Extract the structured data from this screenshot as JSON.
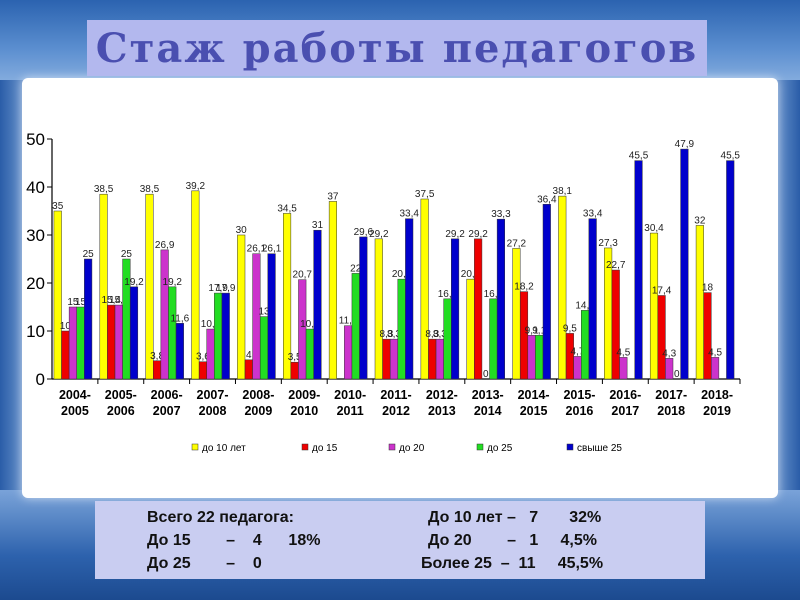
{
  "slide": {
    "title": "Стаж работы педагогов"
  },
  "colors": {
    "series": [
      "#ffff00",
      "#ee0000",
      "#cc33cc",
      "#22dd22",
      "#0000cc"
    ],
    "title_bg": "#b3b8ee",
    "title_text": "#4a4fb0",
    "summary_bg": "#c9cdf1"
  },
  "chart_data": {
    "type": "bar",
    "categories": [
      [
        "2004-",
        "2005"
      ],
      [
        "2005-",
        "2006"
      ],
      [
        "2006-",
        "2007"
      ],
      [
        "2007-",
        "2008"
      ],
      [
        "2008-",
        "2009"
      ],
      [
        "2009-",
        "2010"
      ],
      [
        "2010-",
        "2011"
      ],
      [
        "2011-",
        "2012"
      ],
      [
        "2012-",
        "2013"
      ],
      [
        "2013-",
        "2014"
      ],
      [
        "2014-",
        "2015"
      ],
      [
        "2015-",
        "2016"
      ],
      [
        "2016-",
        "2017"
      ],
      [
        "2017-",
        "2018"
      ],
      [
        "2018-",
        "2019"
      ]
    ],
    "ylim": [
      0,
      50
    ],
    "yticks": [
      0,
      10,
      20,
      30,
      40,
      50
    ],
    "legend_position": "bottom",
    "series": [
      {
        "name": "до 10 лет",
        "values": [
          35,
          38.5,
          38.5,
          39.2,
          30,
          34.5,
          37,
          29.2,
          37.5,
          20.8,
          27.2,
          38.1,
          27.3,
          30.4,
          32
        ],
        "labels": [
          "35",
          "38,5",
          "38,5",
          "39,2",
          "30",
          "34,5",
          "37",
          "29,2",
          "37,5",
          "20,8",
          "27,2",
          "38,1",
          "27,3",
          "30,4",
          "32"
        ]
      },
      {
        "name": "до 15",
        "values": [
          10,
          15.4,
          3.8,
          3.6,
          4,
          3.5,
          0,
          8.3,
          8.3,
          29.2,
          18.2,
          9.5,
          22.7,
          17.4,
          18
        ],
        "labels": [
          "10",
          "15,4",
          "3,8",
          "3,6",
          "4",
          "3,5",
          "",
          "8,3",
          "8,3",
          "29,2",
          "18,2",
          "9,5",
          "22,7",
          "17,4",
          "18"
        ]
      },
      {
        "name": "до 20",
        "values": [
          15,
          15.4,
          26.9,
          10.4,
          26.1,
          20.7,
          11.1,
          8.3,
          8.3,
          0,
          9.1,
          4.7,
          4.5,
          4.3,
          4.5
        ],
        "labels": [
          "15",
          "15,4",
          "26,9",
          "10,4",
          "26,1",
          "20,7",
          "11,1",
          "8,3",
          "8,3",
          "0",
          "9,1",
          "4,7",
          "4,5",
          "4,3",
          "4,5"
        ]
      },
      {
        "name": "до 25",
        "values": [
          15,
          25,
          19.2,
          17.9,
          13,
          10.4,
          22,
          20.8,
          16.7,
          16.7,
          9.1,
          14.3,
          0,
          0,
          0
        ],
        "labels": [
          "15",
          "25",
          "19,2",
          "17,9",
          "13",
          "10,4",
          "22",
          "20,8",
          "16,7",
          "16,7",
          "9,1",
          "14,3",
          "",
          "0",
          ""
        ]
      },
      {
        "name": "свыше 25",
        "values": [
          25,
          19.2,
          11.6,
          17.9,
          26.1,
          31,
          29.6,
          33.4,
          29.2,
          33.3,
          36.4,
          33.4,
          45.5,
          47.9,
          45.5
        ],
        "labels": [
          "25",
          "19,2",
          "11,6",
          "17,9",
          "26,1",
          "31",
          "29,6",
          "33,4",
          "29,2",
          "33,3",
          "36,4",
          "33,4",
          "45,5",
          "47,9",
          "45,5"
        ]
      }
    ]
  },
  "summary": {
    "line1_left": "Всего 22 педагога:",
    "line1_right": "До 10 лет –   7       32%",
    "line2_left": "До 15        –    4      18%",
    "line2_right": "До 20        –   1     4,5%",
    "line3_left": "До 25        –    0",
    "line3_right": "Более 25  –  11     45,5%"
  }
}
